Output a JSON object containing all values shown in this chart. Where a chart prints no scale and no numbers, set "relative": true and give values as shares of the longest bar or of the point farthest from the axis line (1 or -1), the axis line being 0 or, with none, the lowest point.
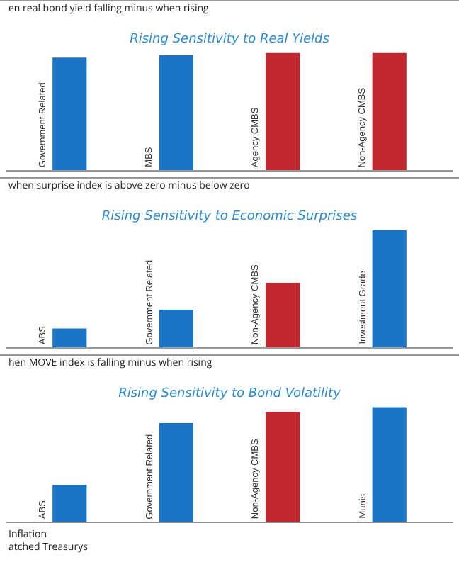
{
  "chart_data": [
    {
      "type": "bar",
      "subtitle": "en real bond yield falling minus when rising",
      "title": "Rising Sensitivity to Real Yields",
      "relative": true,
      "categories": [
        "Government Related",
        "MBS",
        "Agency CMBS",
        "Non-Agency CMBS"
      ],
      "values": [
        0.96,
        0.98,
        1,
        1
      ],
      "colors": [
        "#1a74c6",
        "#1a74c6",
        "#c1272f",
        "#c1272f"
      ]
    },
    {
      "type": "bar",
      "subtitle": "when surprise index is above zero minus below zero",
      "title": "Rising Sensitivity to Economic Surprises",
      "relative": true,
      "categories": [
        "ABS",
        "Government Related",
        "Non-Agency CMBS",
        "Investment Grade"
      ],
      "values": [
        0.16,
        0.32,
        0.55,
        1
      ],
      "colors": [
        "#1a74c6",
        "#1a74c6",
        "#c1272f",
        "#1a74c6"
      ]
    },
    {
      "type": "bar",
      "subtitle": "hen MOVE index is falling minus when rising",
      "title": "Rising Sensitivity to Bond Volatility",
      "relative": true,
      "categories": [
        "ABS",
        "Government Related",
        "Non-Agency CMBS",
        "Munis"
      ],
      "values": [
        0.32,
        0.86,
        0.96,
        1
      ],
      "colors": [
        "#1a74c6",
        "#1a74c6",
        "#c1272f",
        "#1a74c6"
      ],
      "annotations": [
        "Inflation",
        "atched Treasurys"
      ]
    }
  ]
}
